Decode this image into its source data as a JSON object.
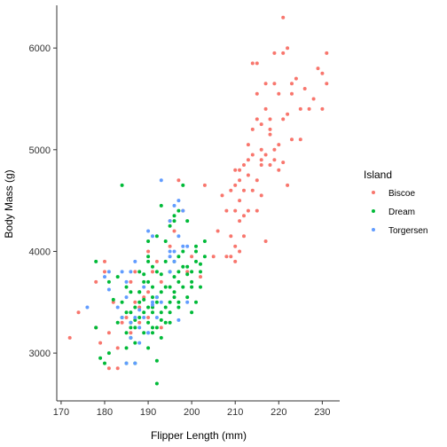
{
  "chart_data": {
    "type": "scatter",
    "xlabel": "Flipper Length (mm)",
    "ylabel": "Body Mass (g)",
    "xlim": [
      169,
      234
    ],
    "ylim": [
      2530,
      6420
    ],
    "xticks": [
      170,
      180,
      190,
      200,
      210,
      220,
      230
    ],
    "yticks": [
      3000,
      4000,
      5000,
      6000
    ],
    "grid": false,
    "legend": {
      "title": "Island",
      "placement": "right"
    },
    "series": [
      {
        "name": "Biscoe",
        "color": "#F8766D",
        "points": [
          [
            172,
            3150
          ],
          [
            174,
            3400
          ],
          [
            178,
            3250
          ],
          [
            178,
            3700
          ],
          [
            179,
            3100
          ],
          [
            180,
            3800
          ],
          [
            180,
            3900
          ],
          [
            181,
            3200
          ],
          [
            181,
            2850
          ],
          [
            182,
            3500
          ],
          [
            183,
            3050
          ],
          [
            183,
            2850
          ],
          [
            184,
            3300
          ],
          [
            185,
            3350
          ],
          [
            186,
            3200
          ],
          [
            186,
            3700
          ],
          [
            187,
            3500
          ],
          [
            187,
            3800
          ],
          [
            188,
            3450
          ],
          [
            188,
            3300
          ],
          [
            189,
            3550
          ],
          [
            190,
            3600
          ],
          [
            190,
            3350
          ],
          [
            190,
            4000
          ],
          [
            191,
            3800
          ],
          [
            192,
            3900
          ],
          [
            193,
            3700
          ],
          [
            193,
            3250
          ],
          [
            195,
            4300
          ],
          [
            195,
            4050
          ],
          [
            196,
            4200
          ],
          [
            197,
            4700
          ],
          [
            198,
            4400
          ],
          [
            199,
            3800
          ],
          [
            200,
            3950
          ],
          [
            202,
            3750
          ],
          [
            203,
            4650
          ],
          [
            205,
            3950
          ],
          [
            206,
            4200
          ],
          [
            207,
            4550
          ],
          [
            208,
            3950
          ],
          [
            208,
            4400
          ],
          [
            209,
            4150
          ],
          [
            209,
            4600
          ],
          [
            209,
            3950
          ],
          [
            210,
            4800
          ],
          [
            210,
            4400
          ],
          [
            210,
            4050
          ],
          [
            210,
            4650
          ],
          [
            210,
            3900
          ],
          [
            211,
            4300
          ],
          [
            211,
            4500
          ],
          [
            211,
            4700
          ],
          [
            211,
            4800
          ],
          [
            211,
            4000
          ],
          [
            212,
            4850
          ],
          [
            212,
            4350
          ],
          [
            212,
            4600
          ],
          [
            212,
            4150
          ],
          [
            213,
            4750
          ],
          [
            213,
            5050
          ],
          [
            213,
            4900
          ],
          [
            213,
            4400
          ],
          [
            214,
            4950
          ],
          [
            214,
            5200
          ],
          [
            214,
            5850
          ],
          [
            214,
            4600
          ],
          [
            215,
            4700
          ],
          [
            215,
            5550
          ],
          [
            215,
            5300
          ],
          [
            215,
            5850
          ],
          [
            215,
            4400
          ],
          [
            216,
            4850
          ],
          [
            216,
            5250
          ],
          [
            216,
            4900
          ],
          [
            216,
            4550
          ],
          [
            216,
            5000
          ],
          [
            217,
            5400
          ],
          [
            217,
            4950
          ],
          [
            217,
            4100
          ],
          [
            217,
            5650
          ],
          [
            218,
            5200
          ],
          [
            218,
            4850
          ],
          [
            218,
            5300
          ],
          [
            218,
            5150
          ],
          [
            219,
            5650
          ],
          [
            219,
            5000
          ],
          [
            219,
            4900
          ],
          [
            219,
            5950
          ],
          [
            220,
            5550
          ],
          [
            220,
            5050
          ],
          [
            220,
            4800
          ],
          [
            221,
            6300
          ],
          [
            221,
            5300
          ],
          [
            221,
            4875
          ],
          [
            221,
            5950
          ],
          [
            222,
            5350
          ],
          [
            222,
            6000
          ],
          [
            222,
            4650
          ],
          [
            223,
            5550
          ],
          [
            223,
            5100
          ],
          [
            223,
            5650
          ],
          [
            224,
            5700
          ],
          [
            225,
            5400
          ],
          [
            225,
            5100
          ],
          [
            226,
            5600
          ],
          [
            227,
            5400
          ],
          [
            228,
            5500
          ],
          [
            229,
            5800
          ],
          [
            230,
            5750
          ],
          [
            230,
            5400
          ],
          [
            231,
            5950
          ],
          [
            231,
            5650
          ]
        ]
      },
      {
        "name": "Dream",
        "color": "#00BA38",
        "points": [
          [
            178,
            3250
          ],
          [
            178,
            3900
          ],
          [
            179,
            2950
          ],
          [
            180,
            2900
          ],
          [
            181,
            3700
          ],
          [
            181,
            3000
          ],
          [
            182,
            3525
          ],
          [
            183,
            3300
          ],
          [
            184,
            4650
          ],
          [
            185,
            3650
          ],
          [
            185,
            3400
          ],
          [
            186,
            3600
          ],
          [
            186,
            3150
          ],
          [
            187,
            3250
          ],
          [
            187,
            2900
          ],
          [
            188,
            3500
          ],
          [
            188,
            3800
          ],
          [
            189,
            3400
          ],
          [
            190,
            3900
          ],
          [
            190,
            3300
          ],
          [
            191,
            3200
          ],
          [
            191,
            3650
          ],
          [
            192,
            3550
          ],
          [
            192,
            2700
          ],
          [
            193,
            3775
          ],
          [
            193,
            3400
          ],
          [
            194,
            3450
          ],
          [
            195,
            3800
          ],
          [
            195,
            3300
          ],
          [
            196,
            3600
          ],
          [
            196,
            4300
          ],
          [
            197,
            3500
          ],
          [
            197,
            3700
          ],
          [
            198,
            3650
          ],
          [
            199,
            3850
          ],
          [
            200,
            3700
          ],
          [
            201,
            4050
          ],
          [
            203,
            3950
          ],
          [
            183,
            3750
          ],
          [
            184,
            3500
          ],
          [
            185,
            3050
          ],
          [
            186,
            3400
          ],
          [
            187,
            3100
          ],
          [
            188,
            3350
          ],
          [
            189,
            3700
          ],
          [
            190,
            3450
          ],
          [
            191,
            3550
          ],
          [
            192,
            3250
          ],
          [
            193,
            3600
          ],
          [
            194,
            3900
          ],
          [
            195,
            3650
          ],
          [
            196,
            3750
          ],
          [
            197,
            3950
          ],
          [
            198,
            4000
          ],
          [
            199,
            3550
          ],
          [
            200,
            3800
          ],
          [
            201,
            3500
          ],
          [
            202,
            3650
          ],
          [
            189,
            3200
          ],
          [
            190,
            3050
          ],
          [
            191,
            3400
          ],
          [
            192,
            2925
          ],
          [
            193,
            3150
          ],
          [
            194,
            3300
          ],
          [
            195,
            3500
          ],
          [
            196,
            3900
          ],
          [
            197,
            3800
          ],
          [
            184,
            3350
          ],
          [
            185,
            3200
          ],
          [
            186,
            3250
          ],
          [
            187,
            3325
          ],
          [
            188,
            3600
          ],
          [
            189,
            3775
          ],
          [
            190,
            4100
          ],
          [
            191,
            3850
          ],
          [
            192,
            4150
          ],
          [
            193,
            4450
          ],
          [
            194,
            4100
          ],
          [
            195,
            4250
          ],
          [
            196,
            4350
          ],
          [
            197,
            4400
          ],
          [
            198,
            4650
          ],
          [
            199,
            4300
          ],
          [
            200,
            3650
          ],
          [
            201,
            4000
          ],
          [
            202,
            3875
          ],
          [
            185,
            2900
          ],
          [
            186,
            3300
          ],
          [
            187,
            3450
          ],
          [
            188,
            3600
          ],
          [
            189,
            3525
          ],
          [
            190,
            3950
          ],
          [
            191,
            3450
          ],
          [
            192,
            3800
          ],
          [
            193,
            3325
          ],
          [
            194,
            3650
          ],
          [
            195,
            3400
          ],
          [
            196,
            3550
          ],
          [
            197,
            3450
          ],
          [
            198,
            3850
          ],
          [
            199,
            3775
          ],
          [
            200,
            3400
          ],
          [
            201,
            3900
          ],
          [
            202,
            3800
          ],
          [
            203,
            4100
          ],
          [
            190,
            3700
          ],
          [
            191,
            3250
          ],
          [
            192,
            3500
          ]
        ]
      },
      {
        "name": "Torgersen",
        "color": "#619CFF",
        "points": [
          [
            176,
            3450
          ],
          [
            180,
            3750
          ],
          [
            181,
            3800
          ],
          [
            184,
            3800
          ],
          [
            185,
            3550
          ],
          [
            186,
            3800
          ],
          [
            187,
            3350
          ],
          [
            188,
            3100
          ],
          [
            188,
            3425
          ],
          [
            189,
            3650
          ],
          [
            190,
            3200
          ],
          [
            190,
            4200
          ],
          [
            191,
            3500
          ],
          [
            192,
            3550
          ],
          [
            193,
            4700
          ],
          [
            195,
            4300
          ],
          [
            195,
            3950
          ],
          [
            196,
            4450
          ],
          [
            197,
            4500
          ],
          [
            198,
            4400
          ],
          [
            199,
            3500
          ],
          [
            186,
            3300
          ],
          [
            187,
            3900
          ],
          [
            191,
            4150
          ],
          [
            195,
            3800
          ],
          [
            197,
            3325
          ],
          [
            181,
            3625
          ],
          [
            185,
            3700
          ],
          [
            188,
            3250
          ],
          [
            183,
            3450
          ],
          [
            189,
            3350
          ],
          [
            196,
            4000
          ],
          [
            192,
            3350
          ],
          [
            197,
            4150
          ],
          [
            185,
            2900
          ],
          [
            198,
            4050
          ],
          [
            184,
            3350
          ],
          [
            187,
            2900
          ],
          [
            190,
            3200
          ],
          [
            191,
            3475
          ],
          [
            195,
            4000
          ],
          [
            196,
            3900
          ],
          [
            186,
            3150
          ],
          [
            199,
            4050
          ],
          [
            193,
            3500
          ]
        ]
      }
    ]
  }
}
